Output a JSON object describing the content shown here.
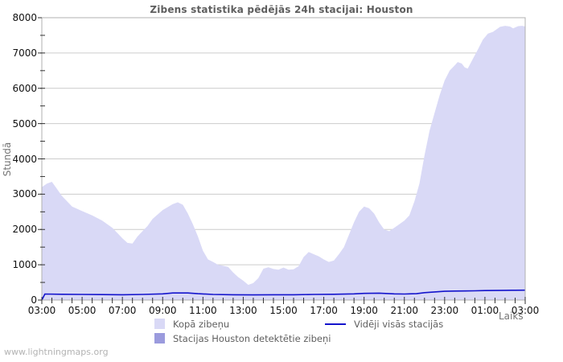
{
  "title": "Zibens statistika pēdējās 24h stacijai: Houston",
  "watermark": "www.lightningmaps.org",
  "axes": {
    "y_label": "Stundā",
    "x_label": "Laiks",
    "y_min": 0,
    "y_max": 8000,
    "y_tick_step": 1000,
    "y_minor_step": 500,
    "x_hours_span": 24,
    "x_minor_step_hours": 0.5,
    "x_tick_labels": [
      "03:00",
      "05:00",
      "07:00",
      "09:00",
      "11:00",
      "13:00",
      "15:00",
      "17:00",
      "19:00",
      "21:00",
      "23:00",
      "01:00",
      "03:00"
    ],
    "x_tick_hours": [
      0,
      2,
      4,
      6,
      8,
      10,
      12,
      14,
      16,
      18,
      20,
      22,
      24
    ],
    "y_tick_labels": [
      "0",
      "1000",
      "2000",
      "3000",
      "4000",
      "5000",
      "6000",
      "7000",
      "8000"
    ]
  },
  "colors": {
    "area_total": "#d9d9f6",
    "area_station": "#9b9bdd",
    "avg_line": "#1414cc",
    "grid": "#cccccc",
    "frame": "#b0b0b0",
    "tick": "#333333"
  },
  "legend": {
    "total_label": "Kopā zibeņu",
    "station_label": "Stacijas Houston detektētie zibeņi",
    "avg_label": "Vidēji visās stacijās"
  },
  "chart_data": {
    "type": "area",
    "title": "Zibens statistika pēdējās 24h stacijai: Houston",
    "xlabel": "Laiks",
    "ylabel": "Stundā",
    "x_unit": "hours_since_03:00",
    "ylim": [
      0,
      8000
    ],
    "grid": "horizontal",
    "legend_position": "bottom",
    "series": [
      {
        "name": "Kopā zibeņu",
        "style": "filled-area",
        "points": [
          [
            0,
            3200
          ],
          [
            0.25,
            3300
          ],
          [
            0.5,
            3350
          ],
          [
            0.75,
            3150
          ],
          [
            1,
            2950
          ],
          [
            1.5,
            2650
          ],
          [
            2,
            2520
          ],
          [
            2.5,
            2400
          ],
          [
            3,
            2250
          ],
          [
            3.5,
            2050
          ],
          [
            3.75,
            1900
          ],
          [
            4,
            1750
          ],
          [
            4.25,
            1620
          ],
          [
            4.5,
            1600
          ],
          [
            4.75,
            1800
          ],
          [
            5,
            1950
          ],
          [
            5.25,
            2100
          ],
          [
            5.5,
            2300
          ],
          [
            6,
            2550
          ],
          [
            6.5,
            2720
          ],
          [
            6.75,
            2770
          ],
          [
            7,
            2700
          ],
          [
            7.25,
            2450
          ],
          [
            7.5,
            2150
          ],
          [
            7.75,
            1800
          ],
          [
            8,
            1400
          ],
          [
            8.25,
            1150
          ],
          [
            8.5,
            1080
          ],
          [
            8.75,
            1000
          ],
          [
            9,
            970
          ],
          [
            9.25,
            940
          ],
          [
            9.5,
            780
          ],
          [
            9.75,
            650
          ],
          [
            10,
            550
          ],
          [
            10.25,
            430
          ],
          [
            10.5,
            480
          ],
          [
            10.75,
            620
          ],
          [
            11,
            890
          ],
          [
            11.25,
            930
          ],
          [
            11.5,
            880
          ],
          [
            11.75,
            860
          ],
          [
            12,
            920
          ],
          [
            12.25,
            860
          ],
          [
            12.5,
            870
          ],
          [
            12.75,
            960
          ],
          [
            13,
            1220
          ],
          [
            13.25,
            1360
          ],
          [
            13.5,
            1300
          ],
          [
            13.75,
            1240
          ],
          [
            14,
            1150
          ],
          [
            14.25,
            1080
          ],
          [
            14.5,
            1120
          ],
          [
            14.75,
            1300
          ],
          [
            15,
            1500
          ],
          [
            15.25,
            1850
          ],
          [
            15.5,
            2200
          ],
          [
            15.75,
            2500
          ],
          [
            16,
            2650
          ],
          [
            16.25,
            2600
          ],
          [
            16.5,
            2450
          ],
          [
            16.75,
            2200
          ],
          [
            17,
            2000
          ],
          [
            17.25,
            1950
          ],
          [
            17.5,
            2050
          ],
          [
            17.75,
            2150
          ],
          [
            18,
            2250
          ],
          [
            18.25,
            2400
          ],
          [
            18.5,
            2800
          ],
          [
            18.75,
            3300
          ],
          [
            19,
            4100
          ],
          [
            19.25,
            4800
          ],
          [
            19.5,
            5300
          ],
          [
            19.75,
            5800
          ],
          [
            20,
            6220
          ],
          [
            20.25,
            6500
          ],
          [
            20.5,
            6650
          ],
          [
            20.65,
            6745
          ],
          [
            20.85,
            6700
          ],
          [
            21,
            6590
          ],
          [
            21.15,
            6560
          ],
          [
            21.4,
            6830
          ],
          [
            21.65,
            7100
          ],
          [
            21.9,
            7380
          ],
          [
            22.15,
            7550
          ],
          [
            22.4,
            7600
          ],
          [
            22.75,
            7740
          ],
          [
            23,
            7770
          ],
          [
            23.25,
            7750
          ],
          [
            23.4,
            7700
          ],
          [
            23.65,
            7760
          ],
          [
            23.85,
            7770
          ],
          [
            24,
            7750
          ]
        ]
      },
      {
        "name": "Stacijas Houston detektētie zibeņi",
        "style": "filled-area",
        "points": [
          [
            0,
            0
          ],
          [
            24,
            0
          ]
        ]
      },
      {
        "name": "Vidēji visās stacijās",
        "style": "line",
        "points": [
          [
            0,
            0
          ],
          [
            0.15,
            170
          ],
          [
            1,
            165
          ],
          [
            2,
            160
          ],
          [
            3,
            155
          ],
          [
            4,
            150
          ],
          [
            5,
            160
          ],
          [
            6,
            175
          ],
          [
            6.5,
            200
          ],
          [
            7.25,
            200
          ],
          [
            7.75,
            180
          ],
          [
            8.5,
            160
          ],
          [
            9.5,
            150
          ],
          [
            10.5,
            145
          ],
          [
            11.5,
            150
          ],
          [
            12.5,
            150
          ],
          [
            13.5,
            160
          ],
          [
            14.5,
            165
          ],
          [
            15.5,
            175
          ],
          [
            16,
            190
          ],
          [
            16.75,
            195
          ],
          [
            17.5,
            175
          ],
          [
            18,
            170
          ],
          [
            18.6,
            180
          ],
          [
            19,
            210
          ],
          [
            19.5,
            230
          ],
          [
            20,
            248
          ],
          [
            20.5,
            255
          ],
          [
            21,
            258
          ],
          [
            21.5,
            263
          ],
          [
            22,
            268
          ],
          [
            22.5,
            272
          ],
          [
            23,
            275
          ],
          [
            23.5,
            278
          ],
          [
            24,
            280
          ]
        ]
      }
    ]
  }
}
